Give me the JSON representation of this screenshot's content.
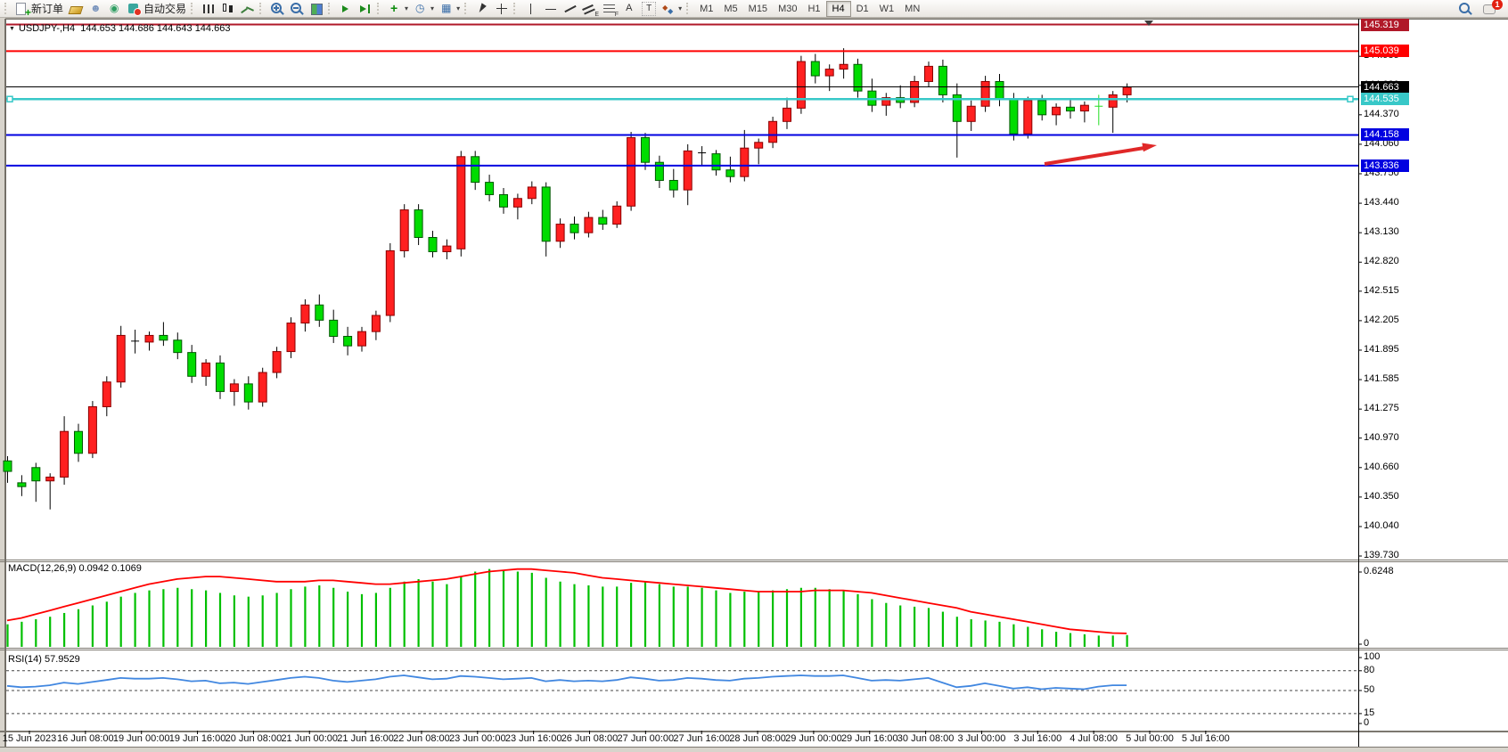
{
  "toolbar": {
    "notifications": "1",
    "groups": [
      {
        "items": [
          {
            "name": "new-order",
            "label": "新订单"
          },
          {
            "name": "gold",
            "label": ""
          },
          {
            "name": "profile",
            "label": ""
          },
          {
            "name": "signal",
            "label": ""
          },
          {
            "name": "autotrade",
            "label": "自动交易"
          }
        ]
      },
      {
        "items": [
          {
            "name": "bars",
            "label": ""
          },
          {
            "name": "candles",
            "label": ""
          },
          {
            "name": "line",
            "label": ""
          }
        ]
      },
      {
        "items": [
          {
            "name": "zoom-in",
            "label": ""
          },
          {
            "name": "zoom-out",
            "label": ""
          },
          {
            "name": "tiles",
            "label": ""
          }
        ]
      },
      {
        "items": [
          {
            "name": "autoscroll",
            "label": ""
          },
          {
            "name": "chartshift",
            "label": ""
          }
        ]
      },
      {
        "items": [
          {
            "name": "indicators",
            "label": "",
            "dropdown": true
          },
          {
            "name": "periods",
            "label": "",
            "dropdown": true
          },
          {
            "name": "templates",
            "label": "",
            "dropdown": true
          }
        ]
      },
      {
        "items": [
          {
            "name": "cursor",
            "label": ""
          },
          {
            "name": "crosshair",
            "label": ""
          }
        ]
      },
      {
        "items": [
          {
            "name": "vline",
            "label": ""
          },
          {
            "name": "hline",
            "label": ""
          },
          {
            "name": "trendline",
            "label": ""
          },
          {
            "name": "channel",
            "label": ""
          },
          {
            "name": "fibo",
            "label": ""
          },
          {
            "name": "text",
            "label": ""
          },
          {
            "name": "label",
            "label": ""
          },
          {
            "name": "shapes",
            "label": "",
            "dropdown": true
          }
        ]
      }
    ],
    "timeframes": [
      {
        "label": "M1"
      },
      {
        "label": "M5"
      },
      {
        "label": "M15"
      },
      {
        "label": "M30"
      },
      {
        "label": "H1"
      },
      {
        "label": "H4",
        "active": true
      },
      {
        "label": "D1"
      },
      {
        "label": "W1"
      },
      {
        "label": "MN"
      }
    ]
  },
  "chart": {
    "dropdown_glyph": "▼",
    "title_symbol": "USDJPY-,H4",
    "title_ohlc": "144.653 144.686 144.643 144.663",
    "price_ticks": [
      "144.985",
      "144.680",
      "144.370",
      "144.060",
      "143.750",
      "143.440",
      "143.130",
      "142.820",
      "142.515",
      "142.205",
      "141.895",
      "141.585",
      "141.275",
      "140.970",
      "140.660",
      "140.350",
      "140.040",
      "139.730"
    ],
    "price_line_labels": [
      {
        "value": "145.319",
        "color": "#b01828"
      },
      {
        "value": "145.039",
        "color": "#ff0000"
      },
      {
        "value": "144.663",
        "color": "#000000"
      },
      {
        "value": "144.535",
        "color": "#38c8c8"
      },
      {
        "value": "144.158",
        "color": "#0000e0"
      },
      {
        "value": "143.836",
        "color": "#0000e0"
      }
    ],
    "hlines": [
      {
        "price": 145.319,
        "color": "#b01828",
        "w": 2
      },
      {
        "price": 145.039,
        "color": "#ff0000",
        "w": 2
      },
      {
        "price": 144.663,
        "color": "#000000",
        "w": 1
      },
      {
        "price": 144.535,
        "color": "#38c8c8",
        "w": 2.5,
        "handles": true
      },
      {
        "price": 144.158,
        "color": "#0000e0",
        "w": 2
      },
      {
        "price": 143.836,
        "color": "#0000e0",
        "w": 2
      }
    ]
  },
  "macd": {
    "name": "MACD(12,26,9)",
    "values": "0.0942 0.1069",
    "axis": [
      "0.6248",
      "0"
    ]
  },
  "rsi": {
    "name": "RSI(14)",
    "value": "57.9529",
    "axis": [
      "100",
      "80",
      "50",
      "15",
      "0"
    ],
    "levels": [
      80,
      50,
      15
    ]
  },
  "colors": {
    "bull": "#ff2020",
    "bullStroke": "#8b0000",
    "bear": "#00dc00",
    "bearStroke": "#005800",
    "wick": "#000000",
    "macdBar": "#00c000",
    "macdSignal": "#ff0000",
    "rsiLine": "#4187e0",
    "arrow": "#e02828",
    "axisText": "#000000"
  },
  "chart_data": {
    "type": "candlestick",
    "symbol": "USDJPY",
    "period": "H4",
    "convention": "red=bull green=bear",
    "time_labels": [
      "15 Jun 2023",
      "16 Jun 08:00",
      "19 Jun 00:00",
      "19 Jun 16:00",
      "20 Jun 08:00",
      "21 Jun 00:00",
      "21 Jun 16:00",
      "22 Jun 08:00",
      "23 Jun 00:00",
      "23 Jun 16:00",
      "26 Jun 08:00",
      "27 Jun 00:00",
      "27 Jun 16:00",
      "28 Jun 08:00",
      "29 Jun 00:00",
      "29 Jun 16:00",
      "30 Jun 08:00",
      "3 Jul 00:00",
      "3 Jul 16:00",
      "4 Jul 08:00",
      "5 Jul 00:00",
      "5 Jul 16:00"
    ],
    "ylim": [
      139.73,
      145.319
    ],
    "candles": [
      [
        140.73,
        140.78,
        140.5,
        140.62
      ],
      [
        140.5,
        140.58,
        140.36,
        140.46
      ],
      [
        140.66,
        140.71,
        140.3,
        140.52
      ],
      [
        140.52,
        140.6,
        140.22,
        140.56
      ],
      [
        140.56,
        141.2,
        140.48,
        141.04
      ],
      [
        141.04,
        141.12,
        140.72,
        140.81
      ],
      [
        140.81,
        141.36,
        140.76,
        141.3
      ],
      [
        141.3,
        141.62,
        141.2,
        141.56
      ],
      [
        141.56,
        142.15,
        141.5,
        142.05
      ],
      [
        141.99,
        142.11,
        141.86,
        141.98
      ],
      [
        141.98,
        142.09,
        141.89,
        142.05
      ],
      [
        142.05,
        142.19,
        141.94,
        142.0
      ],
      [
        142.0,
        142.08,
        141.8,
        141.87
      ],
      [
        141.87,
        141.95,
        141.55,
        141.62
      ],
      [
        141.62,
        141.8,
        141.52,
        141.76
      ],
      [
        141.76,
        141.84,
        141.38,
        141.46
      ],
      [
        141.46,
        141.59,
        141.31,
        141.54
      ],
      [
        141.54,
        141.62,
        141.27,
        141.35
      ],
      [
        141.35,
        141.71,
        141.3,
        141.66
      ],
      [
        141.66,
        141.93,
        141.6,
        141.88
      ],
      [
        141.88,
        142.24,
        141.81,
        142.18
      ],
      [
        142.18,
        142.43,
        142.09,
        142.37
      ],
      [
        142.37,
        142.48,
        142.14,
        142.21
      ],
      [
        142.21,
        142.32,
        141.97,
        142.04
      ],
      [
        142.04,
        142.14,
        141.84,
        141.94
      ],
      [
        141.94,
        142.14,
        141.88,
        142.09
      ],
      [
        142.09,
        142.31,
        142.0,
        142.26
      ],
      [
        142.26,
        143.02,
        142.19,
        142.94
      ],
      [
        142.94,
        143.43,
        142.87,
        143.37
      ],
      [
        143.37,
        143.43,
        143.0,
        143.08
      ],
      [
        143.08,
        143.15,
        142.87,
        142.93
      ],
      [
        142.93,
        143.06,
        142.85,
        142.99
      ],
      [
        142.96,
        143.99,
        142.88,
        143.93
      ],
      [
        143.93,
        143.99,
        143.58,
        143.66
      ],
      [
        143.66,
        143.74,
        143.46,
        143.53
      ],
      [
        143.53,
        143.6,
        143.33,
        143.4
      ],
      [
        143.4,
        143.54,
        143.27,
        143.49
      ],
      [
        143.49,
        143.67,
        143.43,
        143.61
      ],
      [
        143.61,
        143.66,
        142.88,
        143.04
      ],
      [
        143.04,
        143.28,
        142.97,
        143.22
      ],
      [
        143.22,
        143.3,
        143.06,
        143.13
      ],
      [
        143.13,
        143.35,
        143.08,
        143.29
      ],
      [
        143.29,
        143.37,
        143.16,
        143.22
      ],
      [
        143.22,
        143.46,
        143.18,
        143.41
      ],
      [
        143.41,
        144.19,
        143.36,
        144.13
      ],
      [
        144.13,
        144.18,
        143.79,
        143.87
      ],
      [
        143.87,
        143.94,
        143.6,
        143.68
      ],
      [
        143.68,
        143.8,
        143.5,
        143.58
      ],
      [
        143.58,
        144.06,
        143.42,
        143.99
      ],
      [
        143.97,
        144.04,
        143.84,
        143.96
      ],
      [
        143.96,
        144.0,
        143.73,
        143.79
      ],
      [
        143.79,
        143.93,
        143.66,
        143.72
      ],
      [
        143.72,
        144.21,
        143.67,
        144.02
      ],
      [
        144.02,
        144.12,
        143.85,
        144.08
      ],
      [
        144.08,
        144.35,
        144.02,
        144.3
      ],
      [
        144.3,
        144.55,
        144.22,
        144.44
      ],
      [
        144.44,
        144.99,
        144.38,
        144.93
      ],
      [
        144.93,
        145.01,
        144.7,
        144.78
      ],
      [
        144.78,
        144.9,
        144.62,
        144.85
      ],
      [
        144.85,
        145.07,
        144.75,
        144.9
      ],
      [
        144.9,
        144.96,
        144.55,
        144.62
      ],
      [
        144.62,
        144.75,
        144.4,
        144.47
      ],
      [
        144.47,
        144.6,
        144.36,
        144.55
      ],
      [
        144.55,
        144.68,
        144.44,
        144.5
      ],
      [
        144.5,
        144.78,
        144.45,
        144.72
      ],
      [
        144.72,
        144.93,
        144.66,
        144.88
      ],
      [
        144.88,
        144.95,
        144.5,
        144.58
      ],
      [
        144.58,
        144.7,
        143.92,
        144.3
      ],
      [
        144.3,
        144.52,
        144.2,
        144.46
      ],
      [
        144.46,
        144.78,
        144.4,
        144.72
      ],
      [
        144.72,
        144.8,
        144.46,
        144.54
      ],
      [
        144.54,
        144.6,
        144.1,
        144.17
      ],
      [
        144.17,
        144.56,
        144.12,
        144.52
      ],
      [
        144.52,
        144.58,
        144.31,
        144.37
      ],
      [
        144.37,
        144.49,
        144.26,
        144.45
      ],
      [
        144.45,
        144.53,
        144.33,
        144.41
      ],
      [
        144.41,
        144.51,
        144.29,
        144.47
      ],
      [
        144.46,
        144.58,
        144.26,
        144.45
      ],
      [
        144.45,
        144.62,
        144.18,
        144.58
      ],
      [
        144.58,
        144.7,
        144.5,
        144.66
      ]
    ],
    "special": {
      "49": "dark",
      "77": "lime"
    },
    "macd_histogram": [
      0.18,
      0.2,
      0.22,
      0.24,
      0.27,
      0.3,
      0.33,
      0.36,
      0.4,
      0.43,
      0.45,
      0.46,
      0.47,
      0.46,
      0.45,
      0.43,
      0.41,
      0.4,
      0.41,
      0.43,
      0.46,
      0.48,
      0.49,
      0.47,
      0.44,
      0.42,
      0.43,
      0.47,
      0.52,
      0.54,
      0.52,
      0.5,
      0.56,
      0.6,
      0.62,
      0.61,
      0.6,
      0.59,
      0.55,
      0.52,
      0.5,
      0.49,
      0.48,
      0.48,
      0.51,
      0.52,
      0.5,
      0.48,
      0.48,
      0.47,
      0.45,
      0.43,
      0.44,
      0.44,
      0.45,
      0.46,
      0.47,
      0.47,
      0.46,
      0.45,
      0.42,
      0.38,
      0.35,
      0.33,
      0.32,
      0.31,
      0.28,
      0.24,
      0.22,
      0.21,
      0.2,
      0.18,
      0.16,
      0.14,
      0.12,
      0.11,
      0.1,
      0.09,
      0.09,
      0.094
    ],
    "macd_signal": [
      0.21,
      0.23,
      0.26,
      0.29,
      0.32,
      0.35,
      0.38,
      0.41,
      0.44,
      0.47,
      0.5,
      0.52,
      0.54,
      0.55,
      0.56,
      0.56,
      0.55,
      0.54,
      0.53,
      0.52,
      0.52,
      0.52,
      0.53,
      0.53,
      0.52,
      0.51,
      0.5,
      0.5,
      0.51,
      0.52,
      0.53,
      0.54,
      0.56,
      0.58,
      0.6,
      0.61,
      0.62,
      0.62,
      0.61,
      0.6,
      0.59,
      0.57,
      0.55,
      0.54,
      0.53,
      0.52,
      0.51,
      0.5,
      0.49,
      0.48,
      0.47,
      0.46,
      0.45,
      0.44,
      0.44,
      0.44,
      0.44,
      0.45,
      0.45,
      0.45,
      0.44,
      0.43,
      0.41,
      0.39,
      0.37,
      0.35,
      0.33,
      0.31,
      0.28,
      0.26,
      0.24,
      0.22,
      0.2,
      0.18,
      0.16,
      0.14,
      0.13,
      0.12,
      0.11,
      0.107
    ],
    "rsi_values": [
      57,
      55,
      56,
      58,
      62,
      60,
      63,
      66,
      69,
      68,
      68,
      69,
      67,
      64,
      65,
      61,
      62,
      60,
      63,
      66,
      69,
      71,
      69,
      65,
      63,
      65,
      67,
      71,
      73,
      70,
      67,
      68,
      72,
      71,
      69,
      67,
      68,
      69,
      64,
      66,
      64,
      65,
      64,
      66,
      70,
      68,
      65,
      66,
      69,
      68,
      66,
      65,
      68,
      69,
      71,
      72,
      73,
      72,
      72,
      73,
      69,
      65,
      66,
      65,
      67,
      69,
      62,
      55,
      57,
      61,
      57,
      53,
      55,
      52,
      54,
      53,
      52,
      56,
      58,
      57.95
    ],
    "macd_ylim": [
      0,
      0.6248
    ],
    "rsi_ylim": [
      0,
      100
    ]
  }
}
